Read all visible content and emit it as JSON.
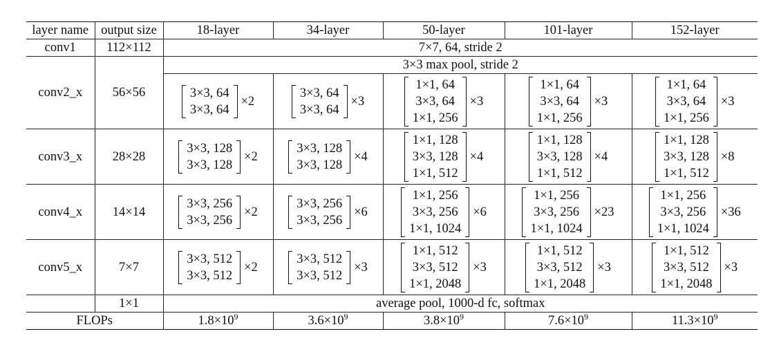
{
  "header": {
    "layer_name": "layer name",
    "output_size": "output size",
    "cols": [
      "18-layer",
      "34-layer",
      "50-layer",
      "101-layer",
      "152-layer"
    ]
  },
  "conv1": {
    "name": "conv1",
    "size": "112×112",
    "spec": "7×7, 64, stride 2"
  },
  "conv2": {
    "name": "conv2_x",
    "size": "56×56",
    "pool": "3×3 max pool, stride 2",
    "cells": [
      {
        "lines": [
          "3×3, 64",
          "3×3, 64"
        ],
        "mult": "×2"
      },
      {
        "lines": [
          "3×3, 64",
          "3×3, 64"
        ],
        "mult": "×3"
      },
      {
        "lines": [
          "1×1, 64",
          "3×3, 64",
          "1×1, 256"
        ],
        "mult": "×3"
      },
      {
        "lines": [
          "1×1, 64",
          "3×3, 64",
          "1×1, 256"
        ],
        "mult": "×3"
      },
      {
        "lines": [
          "1×1, 64",
          "3×3, 64",
          "1×1, 256"
        ],
        "mult": "×3"
      }
    ]
  },
  "conv3": {
    "name": "conv3_x",
    "size": "28×28",
    "cells": [
      {
        "lines": [
          "3×3, 128",
          "3×3, 128"
        ],
        "mult": "×2"
      },
      {
        "lines": [
          "3×3, 128",
          "3×3, 128"
        ],
        "mult": "×4"
      },
      {
        "lines": [
          "1×1, 128",
          "3×3, 128",
          "1×1, 512"
        ],
        "mult": "×4"
      },
      {
        "lines": [
          "1×1, 128",
          "3×3, 128",
          "1×1, 512"
        ],
        "mult": "×4"
      },
      {
        "lines": [
          "1×1, 128",
          "3×3, 128",
          "1×1, 512"
        ],
        "mult": "×8"
      }
    ]
  },
  "conv4": {
    "name": "conv4_x",
    "size": "14×14",
    "cells": [
      {
        "lines": [
          "3×3, 256",
          "3×3, 256"
        ],
        "mult": "×2"
      },
      {
        "lines": [
          "3×3, 256",
          "3×3, 256"
        ],
        "mult": "×6"
      },
      {
        "lines": [
          "1×1, 256",
          "3×3, 256",
          "1×1, 1024"
        ],
        "mult": "×6"
      },
      {
        "lines": [
          "1×1, 256",
          "3×3, 256",
          "1×1, 1024"
        ],
        "mult": "×23"
      },
      {
        "lines": [
          "1×1, 256",
          "3×3, 256",
          "1×1, 1024"
        ],
        "mult": "×36"
      }
    ]
  },
  "conv5": {
    "name": "conv5_x",
    "size": "7×7",
    "cells": [
      {
        "lines": [
          "3×3, 512",
          "3×3, 512"
        ],
        "mult": "×2"
      },
      {
        "lines": [
          "3×3, 512",
          "3×3, 512"
        ],
        "mult": "×3"
      },
      {
        "lines": [
          "1×1, 512",
          "3×3, 512",
          "1×1, 2048"
        ],
        "mult": "×3"
      },
      {
        "lines": [
          "1×1, 512",
          "3×3, 512",
          "1×1, 2048"
        ],
        "mult": "×3"
      },
      {
        "lines": [
          "1×1, 512",
          "3×3, 512",
          "1×1, 2048"
        ],
        "mult": "×3"
      }
    ]
  },
  "final": {
    "size": "1×1",
    "spec": "average pool, 1000-d fc, softmax"
  },
  "flops": {
    "label": "FLOPs",
    "values": [
      {
        "base": "1.8×10",
        "exp": "9"
      },
      {
        "base": "3.6×10",
        "exp": "9"
      },
      {
        "base": "3.8×10",
        "exp": "9"
      },
      {
        "base": "7.6×10",
        "exp": "9"
      },
      {
        "base": "11.3×10",
        "exp": "9"
      }
    ]
  }
}
